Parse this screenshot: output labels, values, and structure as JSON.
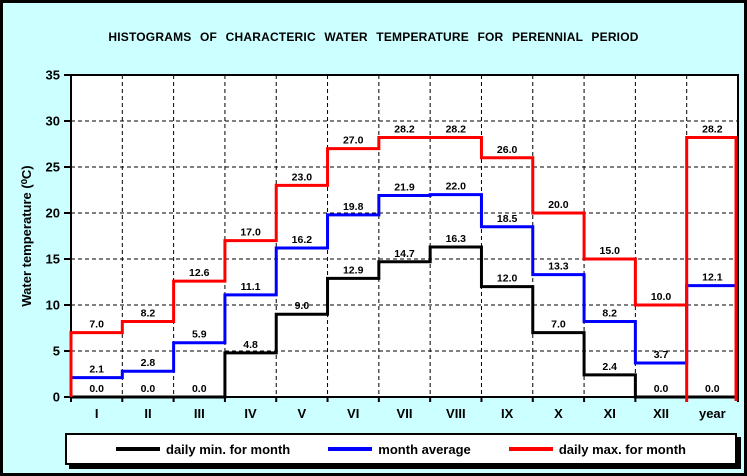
{
  "chart_data": {
    "type": "line",
    "subtype": "step-histogram",
    "title": "HISTOGRAMS OF CHARACTERIC WATER TEMPERATURE FOR PERENNIAL PERIOD",
    "xlabel": "",
    "ylabel": "Water temperature (⁰C)",
    "categories": [
      "I",
      "II",
      "III",
      "IV",
      "V",
      "VI",
      "VII",
      "VIII",
      "IX",
      "X",
      "XI",
      "XII",
      "year"
    ],
    "ylim": [
      0,
      35
    ],
    "ytick_interval": 5,
    "ytick_labels": [
      "0",
      "5",
      "10",
      "15",
      "20",
      "25",
      "30",
      "35"
    ],
    "grid": "dashed horizontal and vertical",
    "legend_position": "bottom",
    "colors": {
      "background": "#CCFFFF",
      "plot_background": "#FFFFFF",
      "axis": "#000000",
      "label_text": "#000000"
    },
    "series": [
      {
        "name": "daily min. for month",
        "color": "#000000",
        "values": [
          0.0,
          0.0,
          0.0,
          4.8,
          9.0,
          12.9,
          14.7,
          16.3,
          12.0,
          7.0,
          2.4,
          0.0,
          0.0
        ]
      },
      {
        "name": "month average",
        "color": "#0000FF",
        "values": [
          2.1,
          2.8,
          5.9,
          11.1,
          16.2,
          19.8,
          21.9,
          22.0,
          18.5,
          13.3,
          8.2,
          3.7,
          12.1
        ]
      },
      {
        "name": "daily max. for month",
        "color": "#FF0000",
        "values": [
          7.0,
          8.2,
          12.6,
          17.0,
          23.0,
          27.0,
          28.2,
          28.2,
          26.0,
          20.0,
          15.0,
          10.0,
          28.2
        ]
      }
    ]
  }
}
